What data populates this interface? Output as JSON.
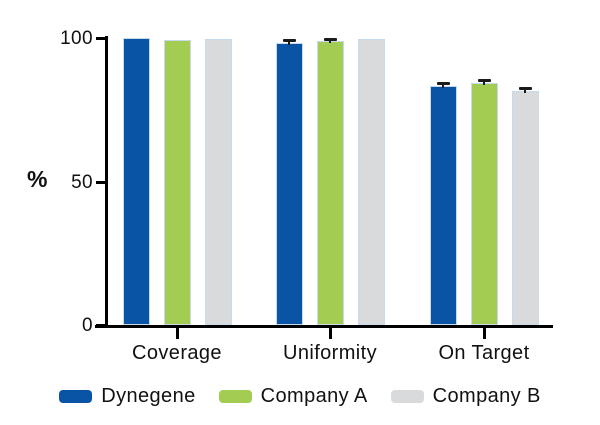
{
  "chart_data": {
    "type": "bar",
    "title": "",
    "categories": [
      "Coverage",
      "Uniformity",
      "On Target"
    ],
    "series": [
      {
        "name": "Dynegene",
        "color": "#0954a5",
        "values": [
          99.9,
          98.4,
          83.3
        ],
        "errors": [
          0,
          0.6,
          0.7
        ]
      },
      {
        "name": "Company A",
        "color": "#a3cc52",
        "values": [
          99.3,
          98.9,
          84.2
        ],
        "errors": [
          0,
          0.5,
          0.8
        ]
      },
      {
        "name": "Company B",
        "color": "#d8dadc",
        "values": [
          99.8,
          99.6,
          81.5
        ],
        "errors": [
          0,
          0,
          0.6
        ]
      }
    ],
    "xlabel": "",
    "ylabel": "%",
    "ylim": [
      0,
      100
    ],
    "yticks": [
      0,
      50,
      100
    ],
    "grid": false,
    "legend_position": "bottom",
    "error_bar_color": "#1a1a1a",
    "axis_color": "#000000",
    "bar_outline_color": "#c7daec"
  }
}
